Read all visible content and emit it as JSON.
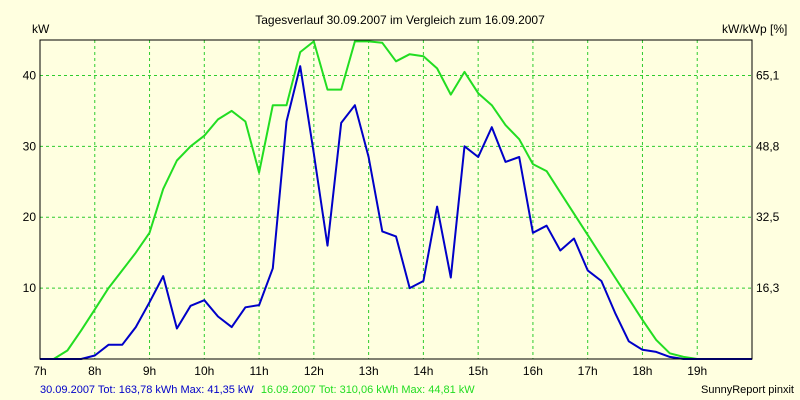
{
  "chart_data": {
    "type": "line",
    "title": "Tagesverlauf 30.09.2007 im Vergleich zum 16.09.2007",
    "ylabel": "kW",
    "y2label": "kW/kWp [%]",
    "xlim": [
      7,
      20
    ],
    "ylim": [
      0,
      45
    ],
    "y_ticks": [
      10,
      20,
      30,
      40
    ],
    "y2_ticks": [
      "16,3",
      "32,5",
      "48,8",
      "65,1"
    ],
    "x_ticks": [
      "7h",
      "8h",
      "9h",
      "10h",
      "11h",
      "12h",
      "13h",
      "14h",
      "15h",
      "16h",
      "17h",
      "18h",
      "19h"
    ],
    "grid": true,
    "colors": {
      "background": "#ffffe0",
      "grid": "#2ecc2e",
      "series_1": "#0000c8",
      "series_2": "#22dd22"
    },
    "series": [
      {
        "footer": "30.09.2007 Tot: 163,78 kWh Max: 41,35 kW",
        "x": [
          7,
          7.25,
          7.5,
          7.75,
          8,
          8.25,
          8.5,
          8.75,
          9,
          9.25,
          9.5,
          9.75,
          10,
          10.25,
          10.5,
          10.75,
          11,
          11.25,
          11.5,
          11.75,
          12,
          12.25,
          12.5,
          12.75,
          13,
          13.25,
          13.5,
          13.75,
          14,
          14.25,
          14.5,
          14.75,
          15,
          15.25,
          15.5,
          15.75,
          16,
          16.25,
          16.5,
          16.75,
          17,
          17.25,
          17.5,
          17.75,
          18,
          18.25,
          18.5,
          18.75,
          19,
          19.25,
          19.5,
          19.75,
          20
        ],
        "values": [
          0,
          0,
          0,
          0,
          0.5,
          2,
          2,
          4.5,
          8,
          11.7,
          4.3,
          7.5,
          8.3,
          6,
          4.5,
          7.3,
          7.6,
          12.8,
          33.5,
          41.3,
          29,
          16,
          33.3,
          35.8,
          28.5,
          18,
          17.3,
          10,
          11,
          21.5,
          11.5,
          30,
          28.5,
          32.7,
          27.8,
          28.5,
          17.8,
          18.8,
          15.3,
          17,
          12.5,
          11,
          6.5,
          2.5,
          1.3,
          1,
          0.3,
          0,
          0,
          0,
          0,
          0,
          0
        ]
      },
      {
        "footer": "16.09.2007 Tot: 310,06 kWh Max: 44,81 kW",
        "x": [
          7,
          7.25,
          7.5,
          7.75,
          8,
          8.25,
          8.5,
          8.75,
          9,
          9.25,
          9.5,
          9.75,
          10,
          10.25,
          10.5,
          10.75,
          11,
          11.25,
          11.5,
          11.75,
          12,
          12.25,
          12.5,
          12.75,
          13,
          13.25,
          13.5,
          13.75,
          14,
          14.25,
          14.5,
          14.75,
          15,
          15.25,
          15.5,
          15.75,
          16,
          16.25,
          16.5,
          16.75,
          17,
          17.25,
          17.5,
          17.75,
          18,
          18.25,
          18.5,
          18.75,
          19,
          19.25,
          19.5,
          19.75,
          20
        ],
        "values": [
          0,
          0,
          1.2,
          4,
          7,
          10,
          12.5,
          15,
          17.8,
          24,
          28,
          30,
          31.5,
          33.8,
          35,
          33.5,
          26.3,
          35.8,
          35.8,
          43.3,
          44.8,
          38,
          38,
          44.8,
          44.8,
          44.6,
          42,
          43,
          42.7,
          41,
          37.3,
          40.5,
          37.5,
          35.8,
          33,
          31,
          27.5,
          26.5,
          23.5,
          20.5,
          17.5,
          14.5,
          11.5,
          8.5,
          5.5,
          2.7,
          0.8,
          0.3,
          0,
          0,
          0,
          0,
          0
        ]
      }
    ]
  },
  "footer": {
    "right": "SunnyReport pinxit"
  }
}
